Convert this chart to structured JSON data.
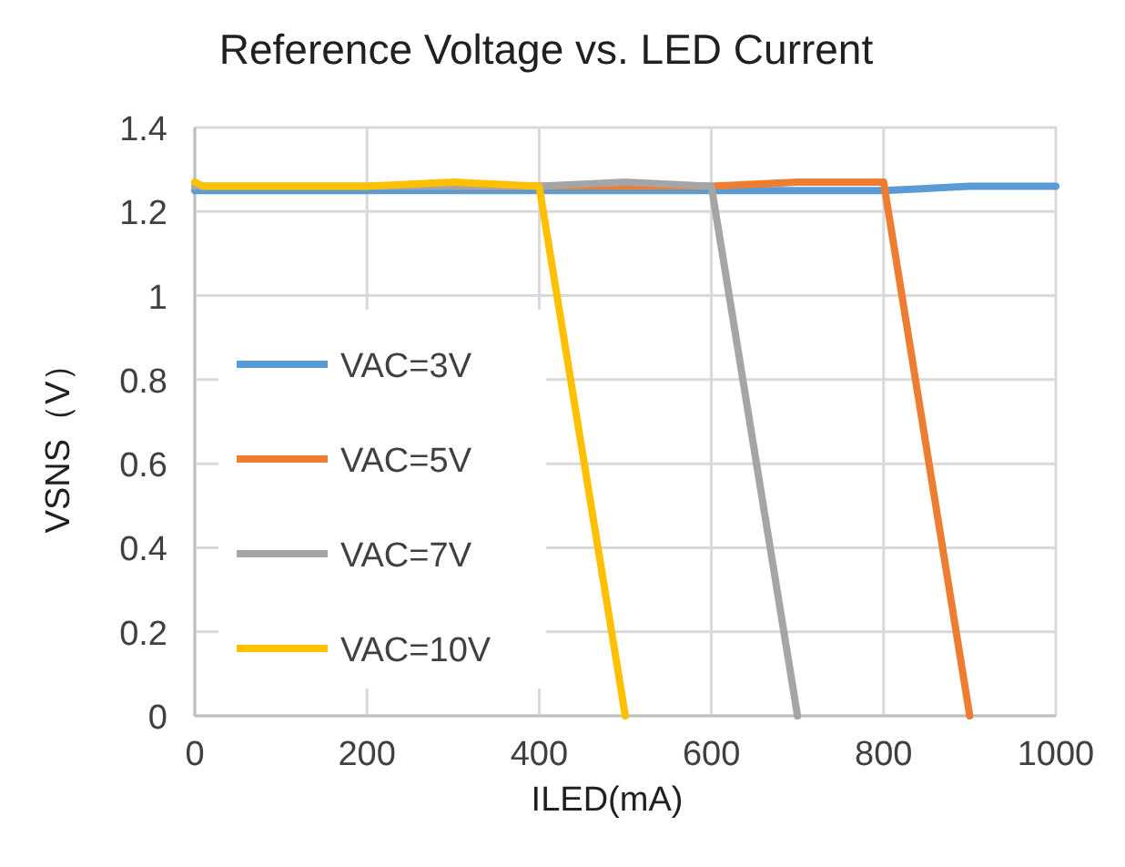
{
  "chart_data": {
    "type": "line",
    "title": "Reference Voltage vs. LED Current",
    "xlabel": "ILED(mA)",
    "ylabel": "VSNS（V）",
    "xlim": [
      0,
      1000
    ],
    "xticks": [
      0,
      200,
      400,
      600,
      800,
      1000
    ],
    "ylim": [
      0,
      1.4
    ],
    "yticks": [
      0,
      0.2,
      0.4,
      0.6,
      0.8,
      1,
      1.2,
      1.4
    ],
    "grid": true,
    "legend": "left",
    "marker": "none",
    "line_style": "solid",
    "series": [
      {
        "name": "VAC=3V",
        "color": "#5b9bd5",
        "x": [
          0,
          100,
          200,
          300,
          400,
          500,
          600,
          700,
          800,
          900,
          1000
        ],
        "values": [
          1.25,
          1.25,
          1.25,
          1.25,
          1.25,
          1.25,
          1.25,
          1.25,
          1.25,
          1.26,
          1.26
        ]
      },
      {
        "name": "VAC=5V",
        "color": "#ed7d31",
        "x": [
          300,
          400,
          500,
          600,
          700,
          800,
          900
        ],
        "values": [
          1.26,
          1.26,
          1.26,
          1.26,
          1.27,
          1.27,
          0
        ]
      },
      {
        "name": "VAC=7V",
        "color": "#a5a5a5",
        "x": [
          0,
          100,
          200,
          300,
          400,
          500,
          600,
          700
        ],
        "values": [
          1.26,
          1.26,
          1.26,
          1.26,
          1.26,
          1.27,
          1.26,
          0
        ]
      },
      {
        "name": "VAC=10V",
        "color": "#ffc000",
        "x": [
          0,
          10,
          100,
          200,
          300,
          400,
          500
        ],
        "values": [
          1.27,
          1.26,
          1.26,
          1.26,
          1.27,
          1.26,
          0
        ]
      }
    ]
  }
}
